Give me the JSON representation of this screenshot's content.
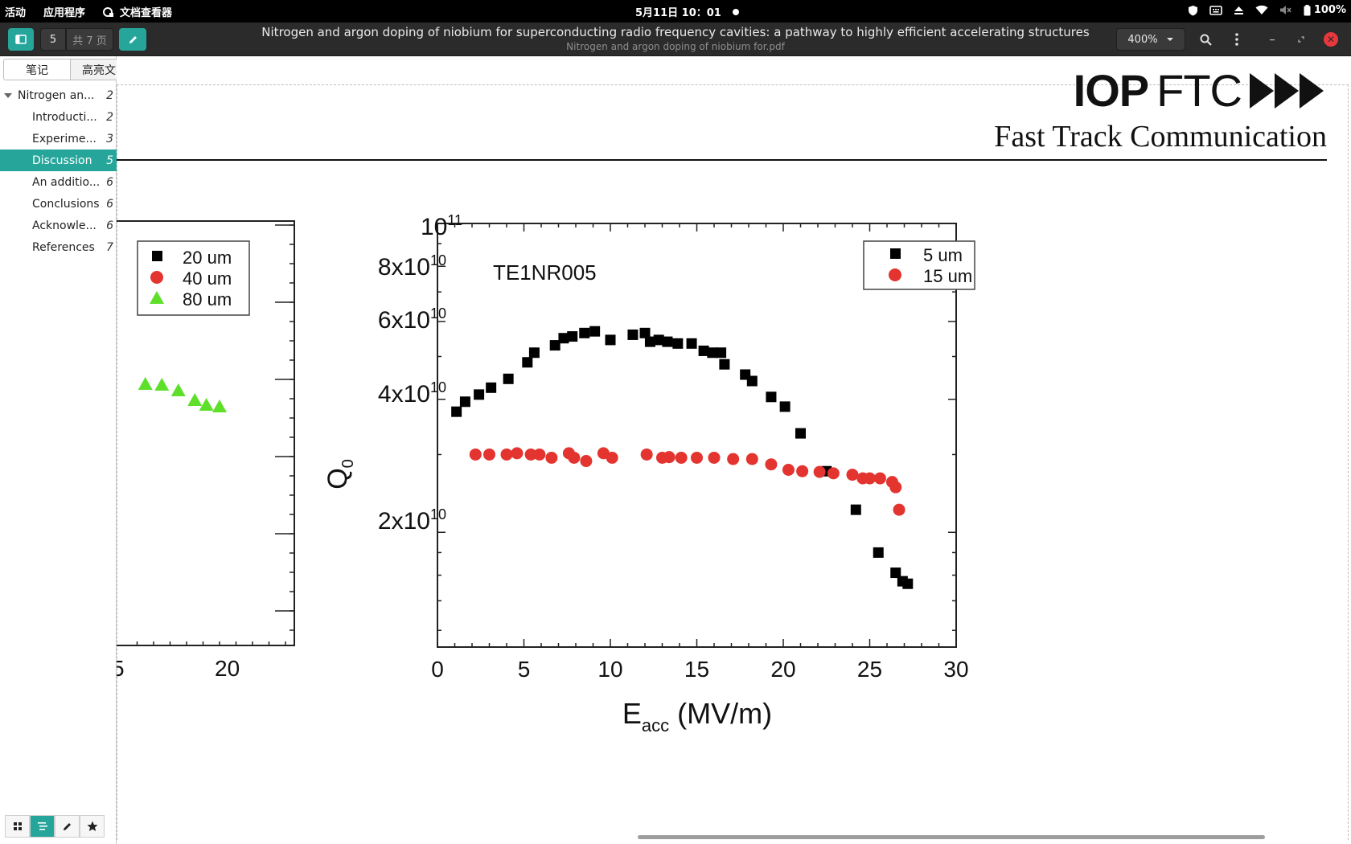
{
  "topbar": {
    "activities": "活动",
    "applications": "应用程序",
    "app_name": "文档查看器",
    "clock": "5月11日  10：01",
    "battery": "100%"
  },
  "headerbar": {
    "page_current": "5",
    "page_total": "共 7 页",
    "title": "Nitrogen and argon doping of niobium for superconducting radio frequency cavities: a pathway to highly efficient accelerating structures",
    "subtitle": "Nitrogen and argon doping of niobium for.pdf",
    "zoom": "400%"
  },
  "sidebar": {
    "tabs": [
      "笔记",
      "高亮文本"
    ],
    "outline": [
      {
        "label": "Nitrogen an...",
        "page": "2",
        "level": 0,
        "expanded": true
      },
      {
        "label": "Introducti...",
        "page": "2",
        "level": 1
      },
      {
        "label": "Experime...",
        "page": "3",
        "level": 1
      },
      {
        "label": "Discussion",
        "page": "5",
        "level": 1,
        "selected": true
      },
      {
        "label": "An additio...",
        "page": "6",
        "level": 1
      },
      {
        "label": "Conclusions",
        "page": "6",
        "level": 1
      },
      {
        "label": "Acknowle...",
        "page": "6",
        "level": 1
      },
      {
        "label": "References",
        "page": "7",
        "level": 1
      }
    ]
  },
  "document": {
    "logo_iop": "IOP",
    "logo_ftc": "FTC",
    "journal": "Fast Track Communication"
  },
  "colors": {
    "accent": "#26a69a",
    "series_black": "#000000",
    "series_red": "#e3342f",
    "series_green": "#5ee02b"
  },
  "chart_data": [
    {
      "type": "scatter",
      "partially_visible": true,
      "legend": [
        "20 um",
        "40 um",
        "80 um"
      ],
      "legend_placement": "top-left",
      "x_tick_labels": [
        "5",
        "20"
      ],
      "series": [
        {
          "name": "80 um",
          "marker": "triangle",
          "color": "#5ee02b",
          "points": [
            [
              15.5,
              0
            ],
            [
              16.5,
              0
            ],
            [
              17.5,
              0
            ],
            [
              18.5,
              0
            ],
            [
              19.2,
              0
            ],
            [
              20,
              0
            ]
          ]
        }
      ]
    },
    {
      "type": "scatter",
      "annotation": "TE1NR005",
      "xlabel": "E_acc (MV/m)",
      "ylabel": "Q_0",
      "xlim": [
        0,
        30
      ],
      "ylim": [
        11000000000.0,
        100000000000.0
      ],
      "yscale": "log",
      "x_ticks": [
        0,
        5,
        10,
        15,
        20,
        25,
        30
      ],
      "y_tick_labels": [
        "10^11",
        "8x10^10",
        "6x10^10",
        "4x10^10",
        "2x10^10"
      ],
      "legend_placement": "top-right",
      "series": [
        {
          "name": "5 um",
          "marker": "square",
          "color": "#000000",
          "x": [
            1.1,
            1.6,
            2.4,
            3.1,
            4.1,
            5.2,
            5.6,
            6.8,
            7.3,
            7.8,
            8.5,
            9.1,
            10.0,
            11.3,
            12.0,
            12.3,
            12.8,
            13.3,
            13.9,
            14.7,
            15.4,
            15.9,
            16.4,
            16.6,
            17.8,
            18.2,
            19.3,
            20.1,
            21.0,
            22.5,
            24.2,
            25.5,
            26.5,
            26.9,
            27.2
          ],
          "y": [
            37500000000.0,
            39500000000.0,
            41000000000.0,
            42500000000.0,
            44500000000.0,
            48500000000.0,
            51000000000.0,
            53000000000.0,
            55000000000.0,
            55500000000.0,
            56500000000.0,
            57000000000.0,
            54500000000.0,
            56000000000.0,
            56500000000.0,
            54000000000.0,
            54500000000.0,
            54000000000.0,
            53500000000.0,
            53500000000.0,
            51500000000.0,
            51000000000.0,
            51000000000.0,
            48000000000.0,
            45500000000.0,
            44000000000.0,
            40500000000.0,
            38500000000.0,
            33500000000.0,
            27500000000.0,
            22500000000.0,
            18000000000.0,
            16200000000.0,
            15500000000.0,
            15300000000.0
          ]
        },
        {
          "name": "15 um",
          "marker": "circle",
          "color": "#e3342f",
          "x": [
            2.2,
            3.0,
            4.0,
            4.6,
            5.4,
            5.9,
            6.6,
            7.6,
            7.9,
            8.6,
            9.6,
            10.1,
            12.1,
            13.0,
            13.4,
            14.1,
            15.0,
            16.0,
            17.1,
            18.2,
            19.3,
            20.3,
            21.1,
            22.1,
            22.9,
            24.0,
            24.6,
            25.0,
            25.6,
            26.3,
            26.5,
            26.7
          ],
          "y": [
            30000000000.0,
            30000000000.0,
            30000000000.0,
            30200000000.0,
            30000000000.0,
            30000000000.0,
            29500000000.0,
            30200000000.0,
            29500000000.0,
            29000000000.0,
            30200000000.0,
            29500000000.0,
            30000000000.0,
            29500000000.0,
            29600000000.0,
            29500000000.0,
            29500000000.0,
            29500000000.0,
            29300000000.0,
            29300000000.0,
            28500000000.0,
            27700000000.0,
            27500000000.0,
            27400000000.0,
            27200000000.0,
            27000000000.0,
            26500000000.0,
            26500000000.0,
            26500000000.0,
            26000000000.0,
            25300000000.0,
            22500000000.0
          ]
        }
      ]
    }
  ]
}
